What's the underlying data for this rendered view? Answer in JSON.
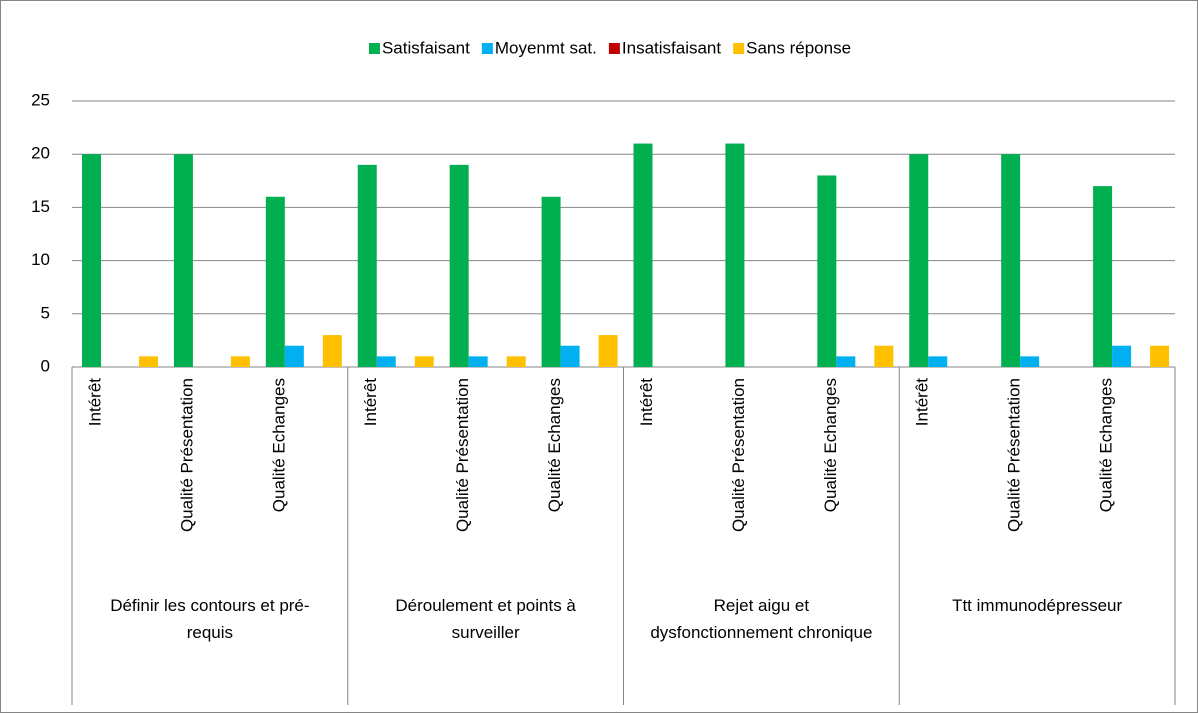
{
  "chart_data": {
    "type": "bar",
    "categories": [
      "Intérêt",
      "Qualité Présentation",
      "Qualité Echanges",
      "Intérêt",
      "Qualité Présentation",
      "Qualité Echanges",
      "Intérêt",
      "Qualité Présentation",
      "Qualité Echanges",
      "Intérêt",
      "Qualité Présentation",
      "Qualité Echanges"
    ],
    "groups": [
      "Définir les contours et pré-requis",
      "Déroulement et points à surveiller",
      "Rejet aigu et dysfonctionnement chronique",
      "Ttt immunodépresseur"
    ],
    "series": [
      {
        "name": "Satisfaisant",
        "color": "#00b050",
        "values": [
          20,
          20,
          16,
          19,
          19,
          16,
          21,
          21,
          18,
          20,
          20,
          17
        ]
      },
      {
        "name": "Moyenmt sat.",
        "color": "#00b0f0",
        "values": [
          0,
          0,
          2,
          1,
          1,
          2,
          0,
          0,
          1,
          1,
          1,
          2
        ]
      },
      {
        "name": "Insatisfaisant",
        "color": "#c00000",
        "values": [
          0,
          0,
          0,
          0,
          0,
          0,
          0,
          0,
          0,
          0,
          0,
          0
        ]
      },
      {
        "name": "Sans réponse",
        "color": "#ffc000",
        "values": [
          1,
          1,
          3,
          1,
          1,
          3,
          0,
          0,
          2,
          0,
          0,
          2
        ]
      }
    ],
    "ylim": [
      0,
      25
    ],
    "yticks": [
      0,
      5,
      10,
      15,
      20,
      25
    ],
    "grid": true,
    "legend": "top"
  }
}
